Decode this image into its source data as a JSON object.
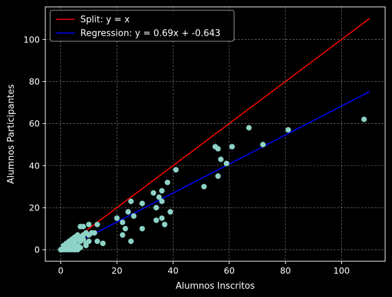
{
  "chart_data": {
    "type": "scatter",
    "xlabel": "Alumnos Inscritos",
    "ylabel": "Alumnos Participantes",
    "xlim": [
      -5.5,
      115.5
    ],
    "ylim": [
      -5.5,
      115.5
    ],
    "xticks": [
      0,
      20,
      40,
      60,
      80,
      100
    ],
    "yticks": [
      0,
      20,
      40,
      60,
      80,
      100
    ],
    "grid": true,
    "legend_position": "top-left",
    "colors": {
      "background": "#000000",
      "points": "#8dd3c7",
      "split_line": "#ff0000",
      "regression_line": "#0000ff",
      "grid": "#8c8c8c",
      "text": "#ffffff"
    },
    "lines": [
      {
        "name": "Split: y = x",
        "color": "#ff0000",
        "x": [
          0,
          110
        ],
        "y": [
          0,
          110
        ]
      },
      {
        "name": "Regression: y = 0.69x + -0.643",
        "color": "#0000ff",
        "x": [
          0,
          110
        ],
        "y": [
          -0.643,
          75.257
        ]
      }
    ],
    "points": [
      [
        0,
        0
      ],
      [
        0,
        0
      ],
      [
        1,
        0
      ],
      [
        1,
        1
      ],
      [
        1,
        2
      ],
      [
        2,
        0
      ],
      [
        2,
        1
      ],
      [
        2,
        2
      ],
      [
        2,
        3
      ],
      [
        3,
        0
      ],
      [
        3,
        1
      ],
      [
        3,
        2
      ],
      [
        3,
        3
      ],
      [
        3,
        4
      ],
      [
        4,
        0
      ],
      [
        4,
        1
      ],
      [
        4,
        2
      ],
      [
        4,
        4
      ],
      [
        4,
        5
      ],
      [
        5,
        0
      ],
      [
        5,
        1
      ],
      [
        5,
        2
      ],
      [
        5,
        3
      ],
      [
        5,
        4
      ],
      [
        5,
        6
      ],
      [
        6,
        0
      ],
      [
        6,
        2
      ],
      [
        6,
        5
      ],
      [
        6,
        7
      ],
      [
        7,
        1
      ],
      [
        7,
        4
      ],
      [
        7,
        6
      ],
      [
        7,
        11
      ],
      [
        8,
        5
      ],
      [
        8,
        7
      ],
      [
        8,
        11
      ],
      [
        9,
        2
      ],
      [
        9,
        8
      ],
      [
        9,
        3
      ],
      [
        10,
        4
      ],
      [
        10,
        7
      ],
      [
        10,
        12
      ],
      [
        11,
        8
      ],
      [
        12,
        8
      ],
      [
        13,
        12
      ],
      [
        13,
        4
      ],
      [
        15,
        3
      ],
      [
        20,
        15
      ],
      [
        22,
        13
      ],
      [
        22,
        7
      ],
      [
        23,
        10
      ],
      [
        24,
        18
      ],
      [
        25,
        23
      ],
      [
        25,
        4
      ],
      [
        26,
        16
      ],
      [
        29,
        22
      ],
      [
        29,
        10
      ],
      [
        33,
        27
      ],
      [
        34,
        20
      ],
      [
        34,
        14
      ],
      [
        35,
        25
      ],
      [
        36,
        15
      ],
      [
        36,
        28
      ],
      [
        36,
        23
      ],
      [
        37,
        12
      ],
      [
        38,
        32
      ],
      [
        39,
        18
      ],
      [
        41,
        38
      ],
      [
        51,
        30
      ],
      [
        55,
        49
      ],
      [
        56,
        48
      ],
      [
        56,
        35
      ],
      [
        57,
        43
      ],
      [
        59,
        41
      ],
      [
        61,
        49
      ],
      [
        67,
        58
      ],
      [
        72,
        50
      ],
      [
        81,
        57
      ],
      [
        108,
        62
      ]
    ]
  }
}
